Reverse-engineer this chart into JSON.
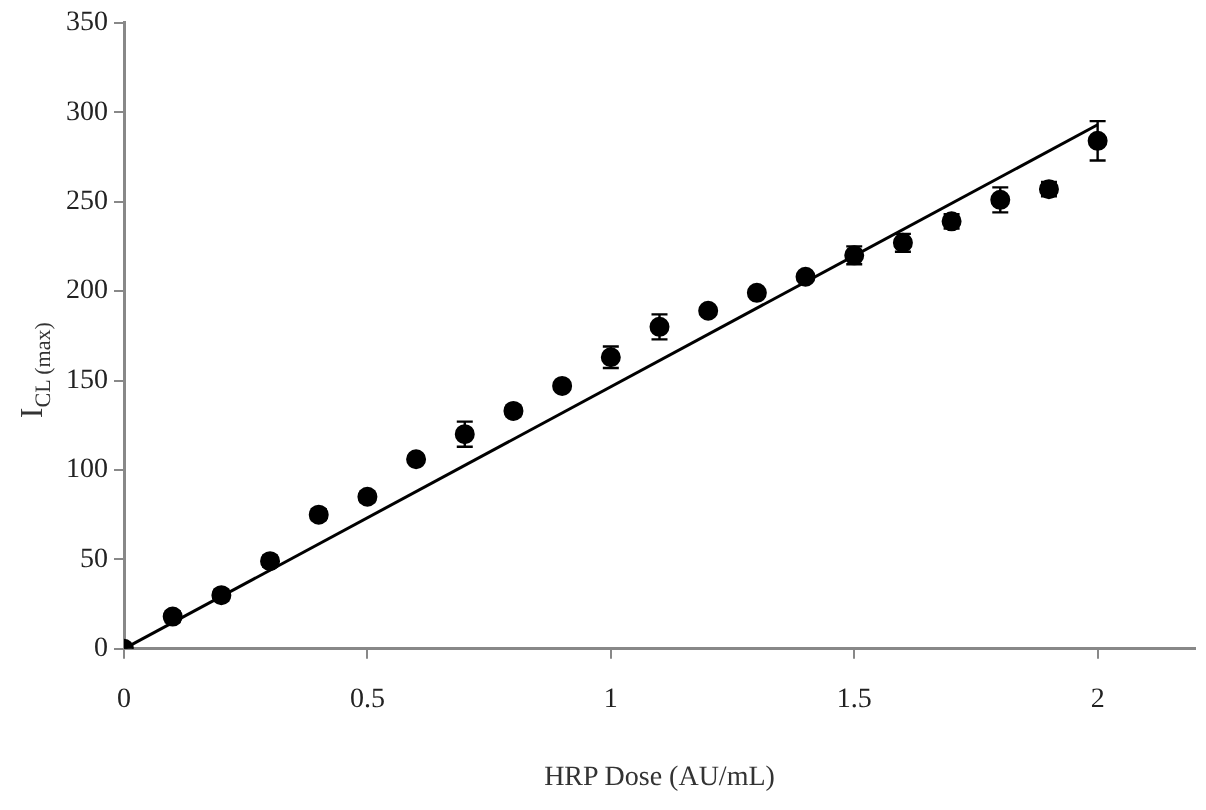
{
  "chart_data": {
    "type": "scatter",
    "xlabel": "HRP Dose (AU/mL)",
    "ylabel": "I$_{CL (max)}$",
    "xlim": [
      0,
      2.2
    ],
    "xticks": [
      0,
      0.5,
      1,
      1.5,
      2
    ],
    "ylim": [
      0,
      350
    ],
    "yticks": [
      0,
      50,
      100,
      150,
      200,
      250,
      300,
      350
    ],
    "grid": false,
    "legend": false,
    "marker": "circle",
    "series": [
      {
        "type": "scatter",
        "color": "#000000",
        "x": [
          0,
          0.1,
          0.2,
          0.3,
          0.4,
          0.5,
          0.6,
          0.7,
          0.8,
          0.9,
          1.0,
          1.1,
          1.2,
          1.3,
          1.4,
          1.5,
          1.6,
          1.7,
          1.8,
          1.9,
          2.0
        ],
        "values": [
          0,
          18,
          30,
          49,
          75,
          85,
          106,
          120,
          133,
          147,
          163,
          180,
          189,
          199,
          208,
          220,
          227,
          239,
          251,
          257,
          284
        ],
        "errors": [
          null,
          3,
          3,
          3,
          3,
          3,
          2,
          7,
          3,
          2,
          6,
          7,
          2,
          2,
          2,
          5,
          5,
          4,
          7,
          4,
          11
        ]
      },
      {
        "type": "line",
        "color": "#000000",
        "x": [
          0,
          2
        ],
        "values": [
          0,
          293
        ],
        "marker": "none"
      }
    ]
  }
}
